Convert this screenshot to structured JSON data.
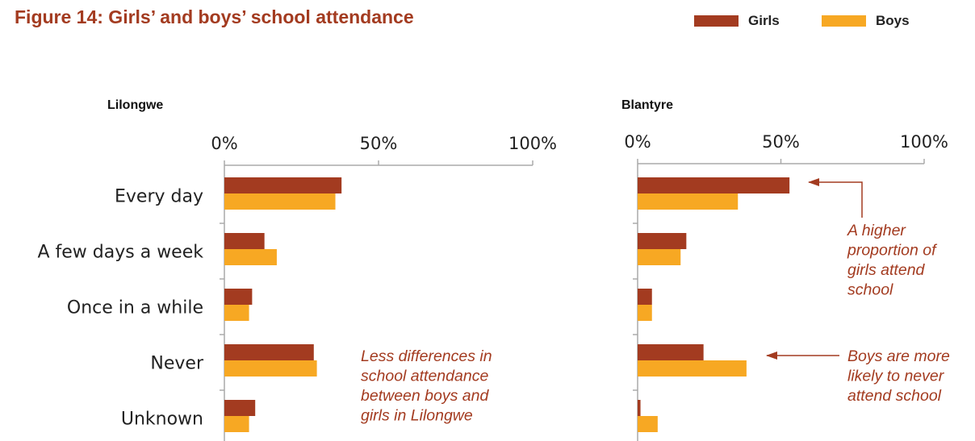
{
  "title": "Figure 14: Girls’ and boys’ school attendance",
  "legend": {
    "girls": "Girls",
    "boys": "Boys"
  },
  "colors": {
    "girls": "#a33b20",
    "boys": "#f7a823",
    "title": "#a33b20",
    "axis": "#aaaaaa"
  },
  "chart_data": [
    {
      "type": "bar",
      "orientation": "horizontal",
      "title": "Lilongwe",
      "categories": [
        "Every day",
        "A few days a week",
        "Once in a while",
        "Never",
        "Unknown"
      ],
      "series": [
        {
          "name": "Girls",
          "values": [
            38,
            13,
            9,
            29,
            10
          ]
        },
        {
          "name": "Boys",
          "values": [
            36,
            17,
            8,
            30,
            8
          ]
        }
      ],
      "xlim": [
        0,
        100
      ],
      "xticks": [
        "0%",
        "50%",
        "100%"
      ],
      "annotations": [
        "Less differences in",
        "school attendance",
        "between boys and",
        "girls in Lilongwe"
      ]
    },
    {
      "type": "bar",
      "orientation": "horizontal",
      "title": "Blantyre",
      "categories": [
        "Every day",
        "A few days a week",
        "Once in a while",
        "Never",
        "Unknown"
      ],
      "series": [
        {
          "name": "Girls",
          "values": [
            53,
            17,
            5,
            23,
            1
          ]
        },
        {
          "name": "Boys",
          "values": [
            35,
            15,
            5,
            38,
            7
          ]
        }
      ],
      "xlim": [
        0,
        100
      ],
      "xticks": [
        "0%",
        "50%",
        "100%"
      ],
      "annotations": [
        [
          "A higher",
          "proportion of",
          "girls attend",
          "school"
        ],
        [
          "Boys are more",
          "likely to never",
          "attend school"
        ]
      ]
    }
  ]
}
